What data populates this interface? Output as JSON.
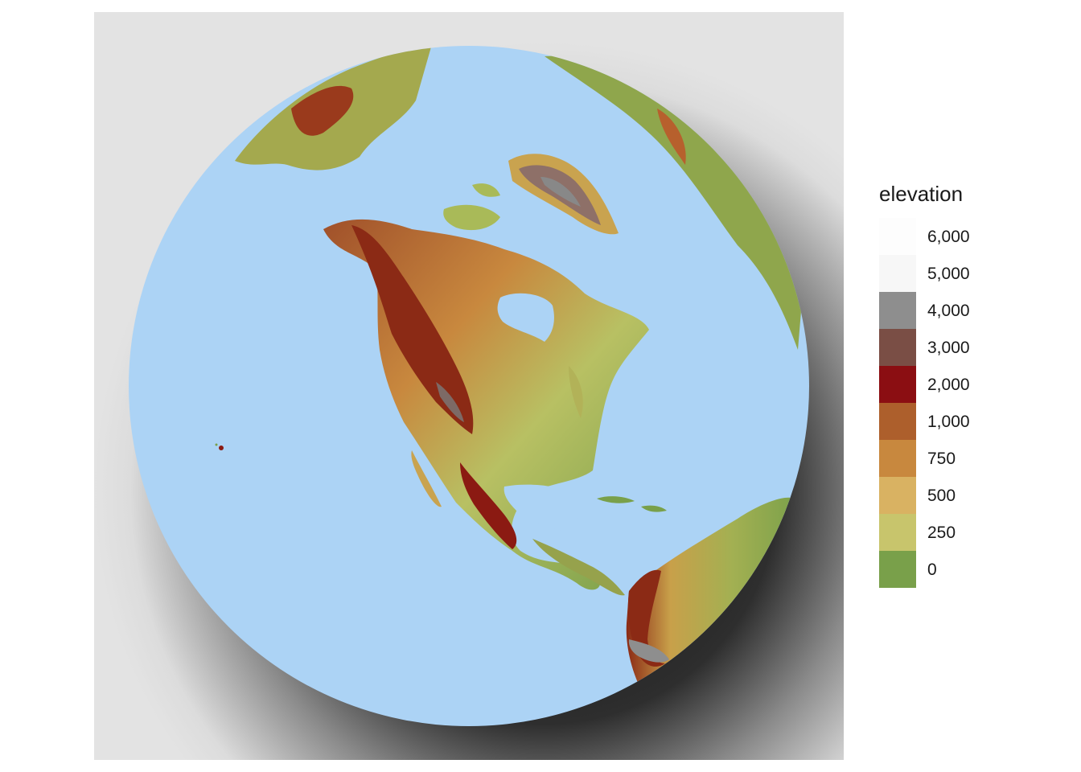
{
  "legend": {
    "title": "elevation",
    "bins": [
      {
        "label": "6,000",
        "color": "#fdfdfd"
      },
      {
        "label": "5,000",
        "color": "#f7f7f7"
      },
      {
        "label": "4,000",
        "color": "#8e8e8e"
      },
      {
        "label": "3,000",
        "color": "#7a4e45"
      },
      {
        "label": "2,000",
        "color": "#8b0e12"
      },
      {
        "label": "1,000",
        "color": "#ad5f2c"
      },
      {
        "label": "750",
        "color": "#c8883e"
      },
      {
        "label": "500",
        "color": "#d9b262"
      },
      {
        "label": "250",
        "color": "#c8c56c"
      },
      {
        "label": "0",
        "color": "#79a04a"
      }
    ]
  },
  "colors": {
    "ocean": "#acd3f5",
    "background": "#e3e3e3",
    "shadow": "#111111"
  },
  "map_content": {
    "projection": "orthographic",
    "center": "North America",
    "regions": [
      "North America",
      "Greenland",
      "South America",
      "Siberia",
      "Europe",
      "Hawaii"
    ]
  }
}
